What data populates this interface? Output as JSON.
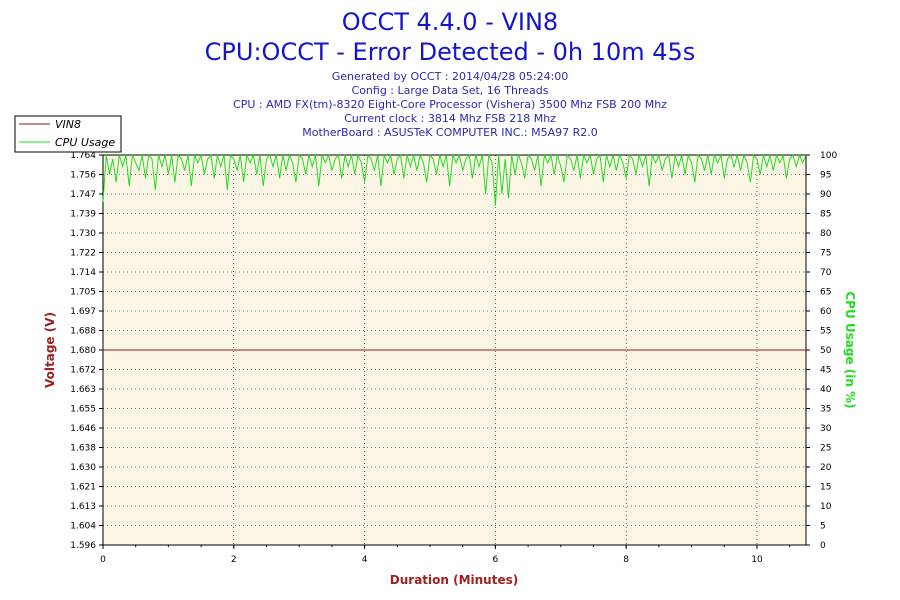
{
  "header": {
    "title": "OCCT 4.4.0 - VIN8",
    "subtitle": "CPU:OCCT - Error Detected - 0h 10m 45s",
    "info": [
      "Generated by OCCT : 2014/04/28 05:24:00",
      "Config : Large Data Set, 16 Threads",
      "CPU : AMD FX(tm)-8320 Eight-Core Processor (Vishera) 3500 Mhz FSB 200 Mhz",
      "Current clock : 3814 Mhz FSB 218 Mhz",
      "MotherBoard : ASUSTeK COMPUTER INC.: M5A97 R2.0"
    ]
  },
  "colors": {
    "title": "#1414cc",
    "plot_bg": "#fbf5e6",
    "vin8": "#8b1a1a",
    "cpu": "#22dd22",
    "left_axis_title": "#a02020",
    "right_axis_title": "#22dd22",
    "x_axis_title": "#a02020"
  },
  "chart_data": {
    "type": "line",
    "xlabel": "Duration (Minutes)",
    "ylabel": "Voltage (V)",
    "y2label": "CPU Usage (in %)",
    "xlim": [
      0,
      10.75
    ],
    "ylim": [
      1.596,
      1.764
    ],
    "y2lim": [
      0,
      100
    ],
    "x_ticks": [
      "0",
      "2",
      "4",
      "6",
      "8",
      "10"
    ],
    "y_ticks": [
      "1.596",
      "1.604",
      "1.613",
      "1.621",
      "1.630",
      "1.638",
      "1.646",
      "1.655",
      "1.663",
      "1.672",
      "1.680",
      "1.688",
      "1.697",
      "1.705",
      "1.714",
      "1.722",
      "1.730",
      "1.739",
      "1.747",
      "1.756",
      "1.764"
    ],
    "y2_ticks": [
      "0",
      "5",
      "10",
      "15",
      "20",
      "25",
      "30",
      "35",
      "40",
      "45",
      "50",
      "55",
      "60",
      "65",
      "70",
      "75",
      "80",
      "85",
      "90",
      "95",
      "100"
    ],
    "grid": true,
    "legend": "top-left",
    "series": [
      {
        "name": "VIN8",
        "axis": "left",
        "x": [
          0,
          10.75
        ],
        "values": [
          1.68,
          1.68
        ]
      },
      {
        "name": "CPU Usage",
        "axis": "right",
        "x": [
          0,
          0.05,
          0.1,
          0.15,
          0.2,
          0.25,
          0.3,
          0.35,
          0.4,
          0.45,
          0.5,
          0.55,
          0.6,
          0.65,
          0.7,
          0.75,
          0.8,
          0.85,
          0.9,
          0.95,
          1.0,
          1.05,
          1.1,
          1.15,
          1.2,
          1.25,
          1.3,
          1.35,
          1.4,
          1.45,
          1.5,
          1.55,
          1.6,
          1.65,
          1.7,
          1.75,
          1.8,
          1.85,
          1.9,
          1.95,
          2.0,
          2.05,
          2.1,
          2.15,
          2.2,
          2.25,
          2.3,
          2.35,
          2.4,
          2.45,
          2.5,
          2.55,
          2.6,
          2.65,
          2.7,
          2.75,
          2.8,
          2.85,
          2.9,
          2.95,
          3.0,
          3.05,
          3.1,
          3.15,
          3.2,
          3.25,
          3.3,
          3.35,
          3.4,
          3.45,
          3.5,
          3.55,
          3.6,
          3.65,
          3.7,
          3.75,
          3.8,
          3.85,
          3.9,
          3.95,
          4.0,
          4.05,
          4.1,
          4.15,
          4.2,
          4.25,
          4.3,
          4.35,
          4.4,
          4.45,
          4.5,
          4.55,
          4.6,
          4.65,
          4.7,
          4.75,
          4.8,
          4.85,
          4.9,
          4.95,
          5.0,
          5.05,
          5.1,
          5.15,
          5.2,
          5.25,
          5.3,
          5.35,
          5.4,
          5.45,
          5.5,
          5.55,
          5.6,
          5.65,
          5.7,
          5.75,
          5.8,
          5.85,
          5.9,
          5.95,
          6.0,
          6.05,
          6.1,
          6.15,
          6.2,
          6.25,
          6.3,
          6.35,
          6.4,
          6.45,
          6.5,
          6.55,
          6.6,
          6.65,
          6.7,
          6.75,
          6.8,
          6.85,
          6.9,
          6.95,
          7.0,
          7.05,
          7.1,
          7.15,
          7.2,
          7.25,
          7.3,
          7.35,
          7.4,
          7.45,
          7.5,
          7.55,
          7.6,
          7.65,
          7.7,
          7.75,
          7.8,
          7.85,
          7.9,
          7.95,
          8.0,
          8.05,
          8.1,
          8.15,
          8.2,
          8.25,
          8.3,
          8.35,
          8.4,
          8.45,
          8.5,
          8.55,
          8.6,
          8.65,
          8.7,
          8.75,
          8.8,
          8.85,
          8.9,
          8.95,
          9.0,
          9.05,
          9.1,
          9.15,
          9.2,
          9.25,
          9.3,
          9.35,
          9.4,
          9.45,
          9.5,
          9.55,
          9.6,
          9.65,
          9.7,
          9.75,
          9.8,
          9.85,
          9.9,
          9.95,
          10.0,
          10.05,
          10.1,
          10.15,
          10.2,
          10.25,
          10.3,
          10.35,
          10.4,
          10.45,
          10.5,
          10.55,
          10.6,
          10.65,
          10.7,
          10.75
        ],
        "values": [
          88,
          100,
          95,
          99,
          93,
          100,
          97,
          100,
          92,
          100,
          98,
          96,
          100,
          94,
          100,
          99,
          91,
          100,
          97,
          100,
          95,
          100,
          93,
          100,
          99,
          96,
          100,
          92,
          100,
          98,
          100,
          95,
          99,
          100,
          94,
          100,
          97,
          100,
          91,
          100,
          99,
          96,
          100,
          93,
          100,
          98,
          100,
          95,
          100,
          92,
          99,
          100,
          97,
          100,
          94,
          100,
          96,
          100,
          98,
          93,
          100,
          99,
          95,
          100,
          97,
          100,
          92,
          100,
          98,
          100,
          96,
          99,
          100,
          94,
          100,
          97,
          100,
          95,
          100,
          98,
          93,
          100,
          99,
          96,
          100,
          92,
          100,
          98,
          100,
          95,
          99,
          100,
          94,
          100,
          97,
          100,
          96,
          100,
          98,
          93,
          100,
          99,
          95,
          100,
          97,
          100,
          92,
          100,
          98,
          100,
          96,
          99,
          100,
          94,
          100,
          97,
          100,
          90,
          100,
          98,
          87,
          100,
          90,
          99,
          89,
          100,
          95,
          100,
          98,
          94,
          100,
          99,
          96,
          100,
          92,
          100,
          98,
          100,
          95,
          100,
          97,
          93,
          100,
          99,
          96,
          100,
          94,
          100,
          98,
          100,
          95,
          99,
          100,
          93,
          100,
          97,
          100,
          96,
          100,
          98,
          94,
          100,
          99,
          95,
          100,
          97,
          100,
          92,
          100,
          98,
          100,
          96,
          99,
          100,
          94,
          100,
          97,
          100,
          95,
          100,
          98,
          93,
          100,
          99,
          96,
          100,
          95,
          100,
          98,
          100,
          94,
          99,
          100,
          97,
          100,
          96,
          100,
          98,
          93,
          100,
          99,
          95,
          100,
          97,
          100,
          96,
          100,
          98,
          100,
          94,
          99,
          100,
          97,
          100,
          98,
          100
        ]
      }
    ]
  }
}
